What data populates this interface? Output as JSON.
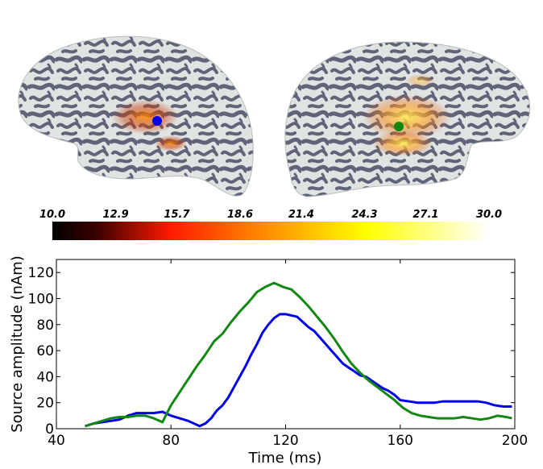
{
  "colorbar": {
    "ticks": [
      "10.0",
      "12.9",
      "15.7",
      "18.6",
      "21.4",
      "24.3",
      "27.1",
      "30.0"
    ],
    "range": [
      10.0,
      30.0
    ],
    "colormap": "hot"
  },
  "hemispheres": [
    {
      "name": "left",
      "marker_color": "#0000ee"
    },
    {
      "name": "right",
      "marker_color": "#118811"
    }
  ],
  "colors": {
    "sulcus": "#5f6479",
    "gyrus": "#dfe4e2",
    "blue_series": "#0000ee",
    "green_series": "#118811"
  },
  "chart_data": {
    "type": "line",
    "xlabel": "Time (ms)",
    "ylabel": "Source amplitude (nAm)",
    "xlim": [
      40,
      200
    ],
    "ylim": [
      0,
      130
    ],
    "xticks": [
      "40",
      "80",
      "120",
      "160",
      "200"
    ],
    "yticks": [
      "0",
      "20",
      "40",
      "60",
      "80",
      "100",
      "120"
    ],
    "grid": false,
    "series": [
      {
        "color": "#0000ee",
        "x": [
          50,
          53,
          56,
          59,
          62,
          65,
          68,
          71,
          74,
          77,
          80,
          83,
          86,
          88,
          90,
          92,
          94,
          96,
          98,
          100,
          102,
          104,
          106,
          108,
          110,
          112,
          114,
          116,
          118,
          120,
          122,
          124,
          126,
          128,
          130,
          132,
          134,
          136,
          138,
          140,
          142,
          144,
          146,
          148,
          150,
          152,
          154,
          156,
          158,
          160,
          163,
          166,
          169,
          172,
          175,
          178,
          181,
          184,
          187,
          190,
          193,
          196,
          199
        ],
        "y": [
          2,
          4,
          5,
          6,
          7,
          10,
          12,
          12,
          12,
          13,
          10,
          8,
          6,
          4,
          2,
          4,
          8,
          14,
          18,
          24,
          32,
          40,
          48,
          57,
          65,
          74,
          80,
          85,
          88,
          88,
          87,
          86,
          82,
          78,
          75,
          70,
          65,
          60,
          55,
          50,
          47,
          44,
          41,
          40,
          37,
          34,
          31,
          29,
          26,
          22,
          21,
          20,
          20,
          20,
          21,
          21,
          21,
          21,
          21,
          20,
          18,
          17,
          17
        ]
      },
      {
        "color": "#118811",
        "x": [
          50,
          53,
          56,
          59,
          62,
          65,
          68,
          71,
          74,
          77,
          80,
          83,
          86,
          89,
          92,
          95,
          98,
          101,
          104,
          107,
          110,
          113,
          116,
          119,
          122,
          125,
          128,
          131,
          134,
          137,
          140,
          143,
          146,
          149,
          152,
          155,
          158,
          161,
          164,
          167,
          170,
          173,
          176,
          179,
          182,
          185,
          188,
          191,
          194,
          197,
          199
        ],
        "y": [
          2,
          4,
          6,
          8,
          9,
          9,
          10,
          10,
          8,
          5,
          18,
          28,
          38,
          48,
          57,
          67,
          73,
          82,
          90,
          97,
          105,
          109,
          112,
          109,
          107,
          101,
          94,
          86,
          78,
          69,
          59,
          50,
          43,
          37,
          32,
          27,
          22,
          16,
          12,
          10,
          9,
          8,
          8,
          8,
          9,
          8,
          7,
          8,
          10,
          9,
          8
        ]
      }
    ]
  }
}
